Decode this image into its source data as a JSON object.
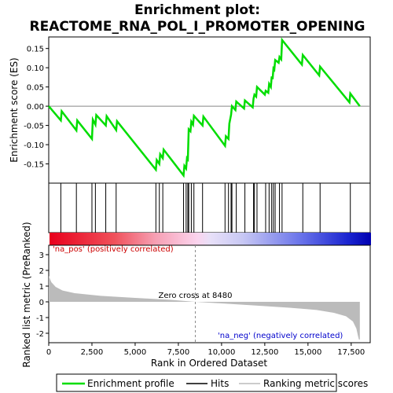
{
  "chart_data": {
    "type": "line",
    "title_line1": "Enrichment plot:",
    "title_line2": "REACTOME_RNA_POL_I_PROMOTER_OPENING",
    "upper_panel": {
      "ylabel": "Enrichment score (ES)",
      "ylim": [
        -0.2,
        0.18
      ],
      "yticks": [
        -0.15,
        -0.1,
        -0.05,
        0.0,
        0.05,
        0.1,
        0.15
      ],
      "ytick_labels": [
        "-0.15",
        "-0.10",
        "-0.05",
        "0.00",
        "0.05",
        "0.10",
        "0.15"
      ],
      "es_points": [
        [
          0,
          0.0
        ],
        [
          700,
          -0.037
        ],
        [
          750,
          -0.013
        ],
        [
          1600,
          -0.063
        ],
        [
          1650,
          -0.037
        ],
        [
          2500,
          -0.085
        ],
        [
          2550,
          -0.035
        ],
        [
          2700,
          -0.048
        ],
        [
          2750,
          -0.023
        ],
        [
          3300,
          -0.05
        ],
        [
          3350,
          -0.026
        ],
        [
          3900,
          -0.062
        ],
        [
          3950,
          -0.039
        ],
        [
          6200,
          -0.165
        ],
        [
          6250,
          -0.14
        ],
        [
          6400,
          -0.15
        ],
        [
          6450,
          -0.125
        ],
        [
          6600,
          -0.135
        ],
        [
          6650,
          -0.113
        ],
        [
          7800,
          -0.18
        ],
        [
          7850,
          -0.155
        ],
        [
          7950,
          -0.162
        ],
        [
          8000,
          -0.135
        ],
        [
          8050,
          -0.138
        ],
        [
          8100,
          -0.06
        ],
        [
          8200,
          -0.065
        ],
        [
          8250,
          -0.04
        ],
        [
          8350,
          -0.048
        ],
        [
          8400,
          -0.025
        ],
        [
          8900,
          -0.05
        ],
        [
          8950,
          -0.027
        ],
        [
          10200,
          -0.103
        ],
        [
          10250,
          -0.078
        ],
        [
          10400,
          -0.085
        ],
        [
          10450,
          -0.045
        ],
        [
          10550,
          -0.022
        ],
        [
          10600,
          0.0
        ],
        [
          10800,
          -0.01
        ],
        [
          10850,
          0.012
        ],
        [
          11300,
          -0.006
        ],
        [
          11350,
          0.015
        ],
        [
          11800,
          -0.003
        ],
        [
          11850,
          0.02
        ],
        [
          11900,
          0.03
        ],
        [
          12000,
          0.025
        ],
        [
          12050,
          0.05
        ],
        [
          12500,
          0.03
        ],
        [
          12550,
          0.04
        ],
        [
          12700,
          0.035
        ],
        [
          12750,
          0.058
        ],
        [
          12850,
          0.05
        ],
        [
          12900,
          0.077
        ],
        [
          12950,
          0.07
        ],
        [
          13000,
          0.098
        ],
        [
          13050,
          0.095
        ],
        [
          13100,
          0.12
        ],
        [
          13300,
          0.113
        ],
        [
          13350,
          0.128
        ],
        [
          13450,
          0.122
        ],
        [
          13500,
          0.172
        ],
        [
          14650,
          0.108
        ],
        [
          14700,
          0.133
        ],
        [
          15650,
          0.08
        ],
        [
          15700,
          0.103
        ],
        [
          17400,
          0.01
        ],
        [
          17450,
          0.033
        ],
        [
          18000,
          0.0
        ]
      ],
      "x_max": 18000
    },
    "hits_panel": {
      "hit_ranks": [
        700,
        1600,
        2500,
        2700,
        3300,
        3900,
        6200,
        6400,
        6600,
        7800,
        7950,
        8050,
        8100,
        8250,
        8400,
        8900,
        10200,
        10400,
        10550,
        10600,
        10850,
        11350,
        11850,
        11900,
        12050,
        12550,
        12750,
        12900,
        13000,
        13100,
        13350,
        13500,
        14700,
        15700,
        17450
      ]
    },
    "rank_panel": {
      "ylabel": "Ranked list metric (PreRanked)",
      "ylim": [
        -2.6,
        3.6
      ],
      "yticks": [
        -2,
        -1,
        0,
        1,
        2,
        3
      ],
      "ytick_labels": [
        "-2",
        "-1",
        "0",
        "1",
        "2",
        "3"
      ],
      "metric_points": [
        [
          0,
          1.65
        ],
        [
          150,
          1.25
        ],
        [
          400,
          0.95
        ],
        [
          800,
          0.72
        ],
        [
          1500,
          0.55
        ],
        [
          3000,
          0.38
        ],
        [
          5000,
          0.25
        ],
        [
          7000,
          0.13
        ],
        [
          8480,
          0.0
        ],
        [
          10000,
          -0.1
        ],
        [
          12000,
          -0.24
        ],
        [
          14000,
          -0.38
        ],
        [
          15500,
          -0.52
        ],
        [
          16500,
          -0.7
        ],
        [
          17200,
          -0.92
        ],
        [
          17600,
          -1.25
        ],
        [
          17800,
          -1.7
        ],
        [
          17900,
          -2.2
        ],
        [
          17950,
          -2.4
        ],
        [
          18000,
          -2.4
        ]
      ],
      "zero_cross_text": "Zero cross at 8480",
      "zero_cross_rank": 8480,
      "pos_label": "'na_pos' (positively correlated)",
      "neg_label": "'na_neg' (negatively correlated)"
    },
    "xaxis": {
      "xlabel": "Rank in Ordered Dataset",
      "xlim": [
        0,
        18600
      ],
      "xticks": [
        0,
        2500,
        5000,
        7500,
        10000,
        12500,
        15000,
        17500
      ],
      "xtick_labels": [
        "0",
        "2,500",
        "5,000",
        "7,500",
        "10,000",
        "12,500",
        "15,000",
        "17,500"
      ]
    },
    "legend": {
      "entries": [
        "Enrichment profile",
        "Hits",
        "Ranking metric scores"
      ]
    },
    "colors": {
      "enrichment_line": "#00dd00",
      "hits": "#000000",
      "metric_fill": "#bbbbbb",
      "pos_text": "#cc0000",
      "neg_text": "#0000cc",
      "zero_line": "#888888"
    }
  }
}
